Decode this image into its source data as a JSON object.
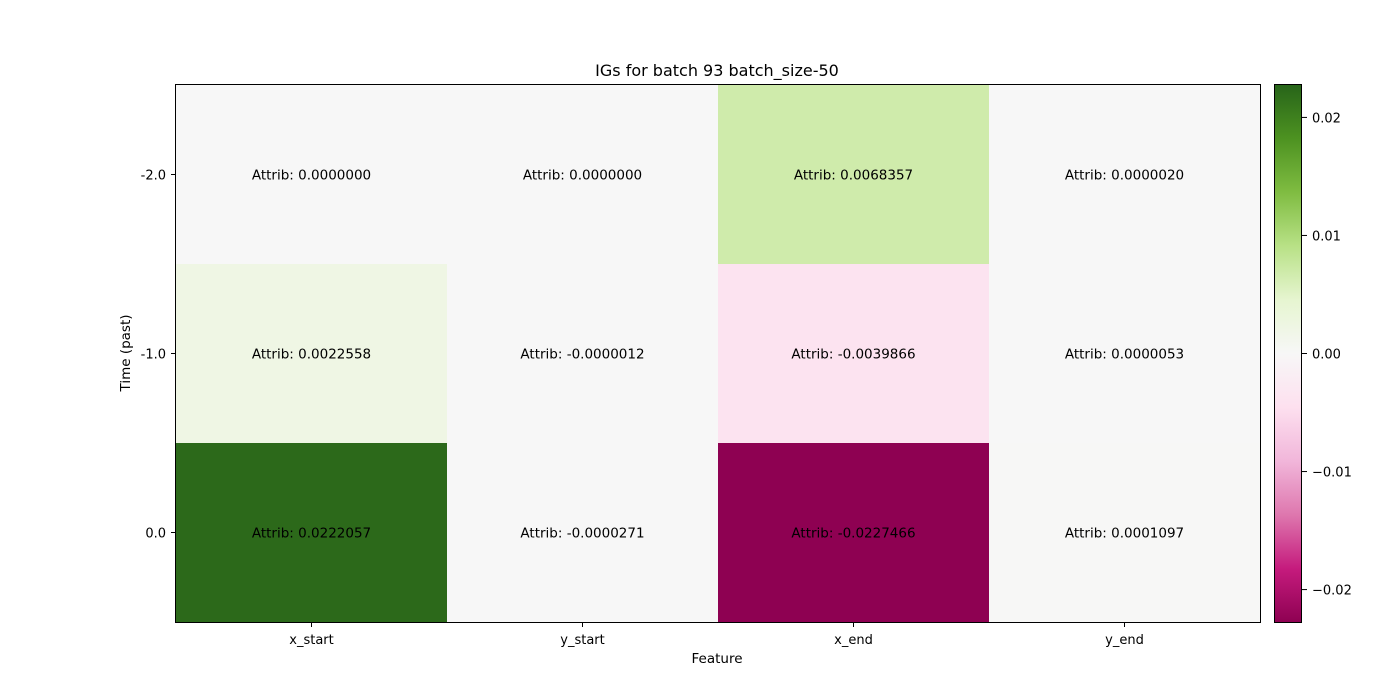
{
  "chart_data": {
    "type": "heatmap",
    "title": "IGs for batch 93 batch_size-50",
    "xlabel": "Feature",
    "ylabel": "Time (past)",
    "x_categories": [
      "x_start",
      "y_start",
      "x_end",
      "y_end"
    ],
    "y_categories": [
      "-2.0",
      "-1.0",
      "0.0"
    ],
    "values": [
      [
        0.0,
        0.0,
        0.0068357,
        2e-06
      ],
      [
        0.0022558,
        -1.2e-06,
        -0.0039866,
        5.3e-06
      ],
      [
        0.0222057,
        -2.71e-05,
        -0.0227466,
        0.0001097
      ]
    ],
    "cell_labels": [
      [
        "Attrib: 0.0000000",
        "Attrib: 0.0000000",
        "Attrib: 0.0068357",
        "Attrib: 0.0000020"
      ],
      [
        "Attrib: 0.0022558",
        "Attrib: -0.0000012",
        "Attrib: -0.0039866",
        "Attrib: 0.0000053"
      ],
      [
        "Attrib: 0.0222057",
        "Attrib: -0.0000271",
        "Attrib: -0.0227466",
        "Attrib: 0.0001097"
      ]
    ],
    "colormap": "PiYG",
    "vmin": -0.0227466,
    "vmax": 0.0227466,
    "colorbar": {
      "ticks": [
        0.02,
        0.01,
        0.0,
        -0.01,
        -0.02
      ],
      "tick_labels": [
        "0.02",
        "0.01",
        "0.00",
        "−0.01",
        "−0.02"
      ]
    },
    "colormap_stops": [
      "#8e0152",
      "#c51b7d",
      "#de77ae",
      "#f1b6da",
      "#fde0ef",
      "#f7f7f7",
      "#e6f5d0",
      "#b8e186",
      "#7fbc41",
      "#4d9221",
      "#276419"
    ]
  }
}
